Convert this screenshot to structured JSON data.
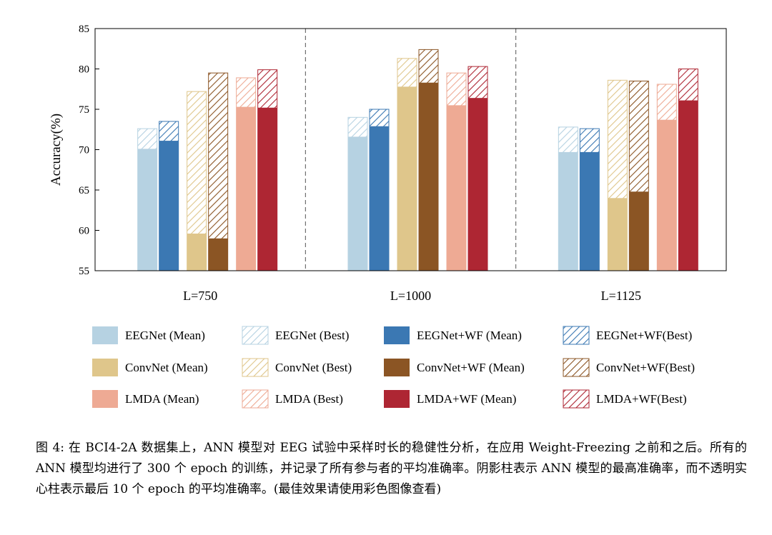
{
  "colors": {
    "eegnet_mean": "#b6d2e2",
    "eegnet_best": "#b6d2e2",
    "eegnetwf_mean": "#3b78b3",
    "eegnetwf_best": "#3b78b3",
    "convnet_mean": "#dfc68b",
    "convnet_best": "#dfc68b",
    "convnetwf_mean": "#8b5524",
    "convnetwf_best": "#8b5524",
    "lmda_mean": "#eeaa94",
    "lmda_best": "#eeaa94",
    "lmdawf_mean": "#ae2633",
    "lmdawf_best": "#ae2633"
  },
  "chart_data": {
    "type": "bar",
    "title": "",
    "xlabel": "",
    "ylabel": "Accuracy(%)",
    "ylim": [
      55,
      85
    ],
    "yticks": [
      "55",
      "60",
      "65",
      "70",
      "75",
      "80",
      "85"
    ],
    "categories": [
      "L=750",
      "L=1000",
      "L=1125"
    ],
    "series": [
      {
        "name": "EEGNet",
        "key": "eegnet",
        "mean": [
          70.1,
          71.6,
          69.7
        ],
        "best": [
          72.6,
          74.0,
          72.8
        ]
      },
      {
        "name": "EEGNet+WF",
        "key": "eegnetwf",
        "mean": [
          71.1,
          72.9,
          69.7
        ],
        "best": [
          73.5,
          75.0,
          72.6
        ]
      },
      {
        "name": "ConvNet",
        "key": "convnet",
        "mean": [
          59.6,
          77.8,
          64.0
        ],
        "best": [
          77.2,
          81.3,
          78.6
        ]
      },
      {
        "name": "ConvNet+WF",
        "key": "convnetwf",
        "mean": [
          59.0,
          78.3,
          64.8
        ],
        "best": [
          79.5,
          82.4,
          78.5
        ]
      },
      {
        "name": "LMDA",
        "key": "lmda",
        "mean": [
          75.3,
          75.5,
          73.7
        ],
        "best": [
          78.9,
          79.5,
          78.1
        ]
      },
      {
        "name": "LMDA+WF",
        "key": "lmdawf",
        "mean": [
          75.2,
          76.4,
          76.1
        ],
        "best": [
          79.9,
          80.3,
          80.0
        ]
      }
    ],
    "legend": [
      [
        {
          "label": "EEGNet (Mean)",
          "key": "eegnet",
          "style": "solid"
        },
        {
          "label": "EEGNet (Best)",
          "key": "eegnet",
          "style": "hatch"
        },
        {
          "label": "EEGNet+WF (Mean)",
          "key": "eegnetwf",
          "style": "solid"
        },
        {
          "label": "EEGNet+WF(Best)",
          "key": "eegnetwf",
          "style": "hatch"
        }
      ],
      [
        {
          "label": "ConvNet (Mean)",
          "key": "convnet",
          "style": "solid"
        },
        {
          "label": "ConvNet (Best)",
          "key": "convnet",
          "style": "hatch"
        },
        {
          "label": "ConvNet+WF (Mean)",
          "key": "convnetwf",
          "style": "solid"
        },
        {
          "label": "ConvNet+WF(Best)",
          "key": "convnetwf",
          "style": "hatch"
        }
      ],
      [
        {
          "label": "LMDA (Mean)",
          "key": "lmda",
          "style": "solid"
        },
        {
          "label": "LMDA (Best)",
          "key": "lmda",
          "style": "hatch"
        },
        {
          "label": "LMDA+WF (Mean)",
          "key": "lmdawf",
          "style": "solid"
        },
        {
          "label": "LMDA+WF(Best)",
          "key": "lmdawf",
          "style": "hatch"
        }
      ]
    ]
  },
  "caption": "图 4: 在 BCI4-2A 数据集上，ANN 模型对 EEG 试验中采样时长的稳健性分析，在应用 Weight-Freezing 之前和之后。所有的 ANN 模型均进行了 300 个 epoch 的训练，并记录了所有参与者的平均准确率。阴影柱表示 ANN 模型的最高准确率，而不透明实心柱表示最后 10 个 epoch 的平均准确率。(最佳效果请使用彩色图像查看)"
}
